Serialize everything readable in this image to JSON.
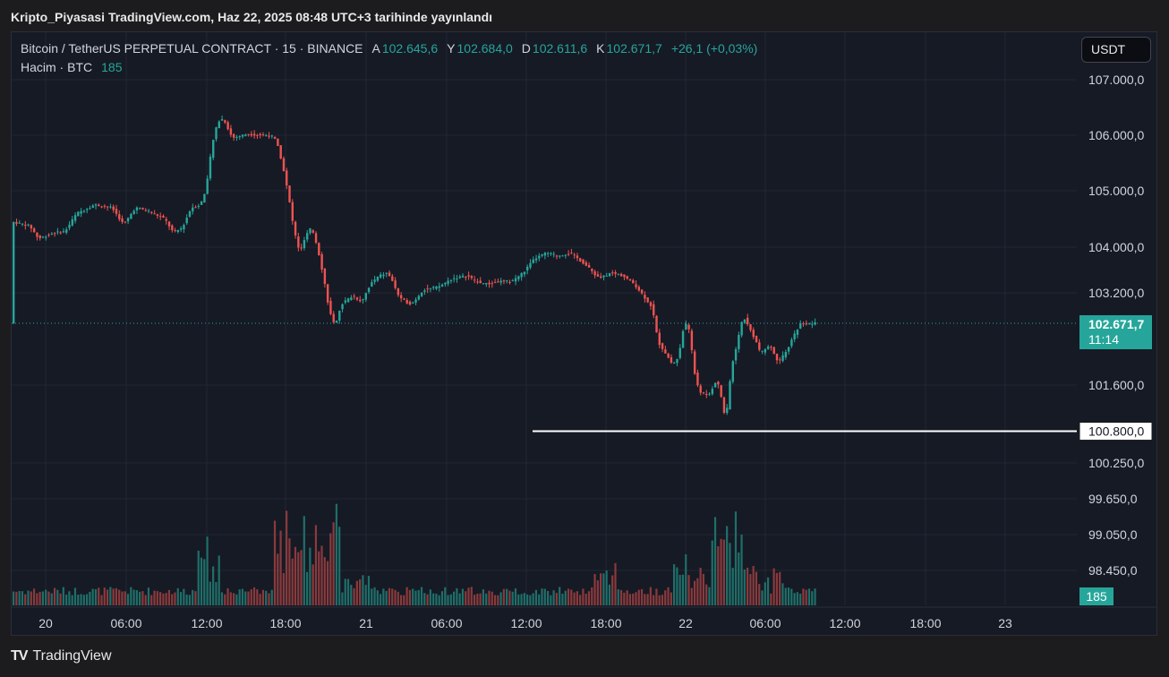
{
  "caption": "Kripto_Piyasasi TradingView.com, Haz 22, 2025 08:48 UTC+3 tarihinde yayınlandı",
  "legend": {
    "symbol": "Bitcoin / TetherUS PERPETUAL CONTRACT · 15 · BINANCE",
    "open_label": "A",
    "open": "102.645,6",
    "high_label": "Y",
    "high": "102.684,0",
    "low_label": "D",
    "low": "102.611,6",
    "close_label": "K",
    "close": "102.671,7",
    "change": "+26,1 (+0,03%)",
    "volume_label": "Hacim · BTC",
    "volume_value": "185"
  },
  "currency": "USDT",
  "price_badge": {
    "price": "102.671,7",
    "countdown": "11:14"
  },
  "support_badge": "100.800,0",
  "volume_badge": "185",
  "footer": {
    "logo": "TV",
    "brand": "TradingView"
  },
  "colors": {
    "up": "#26a69a",
    "down": "#ef5350",
    "background": "#161a25",
    "grid": "#232733",
    "support": "#ffffff"
  },
  "chart_data": {
    "type": "candlestick",
    "interval_minutes": 15,
    "price_axis": {
      "scale": "non-linear (log-like compressed)",
      "ticks": [
        {
          "v": 107000,
          "label": "107.000,0"
        },
        {
          "v": 106000,
          "label": "106.000,0"
        },
        {
          "v": 105000,
          "label": "105.000,0"
        },
        {
          "v": 104000,
          "label": "104.000,0"
        },
        {
          "v": 103200,
          "label": "103.200,0"
        },
        {
          "v": 101600,
          "label": "101.600,0"
        },
        {
          "v": 100250,
          "label": "100.250,0"
        },
        {
          "v": 99650,
          "label": "99.650,0"
        },
        {
          "v": 99050,
          "label": "99.050,0"
        },
        {
          "v": 98450,
          "label": "98.450,0"
        }
      ]
    },
    "time_axis": [
      "20",
      "06:00",
      "12:00",
      "18:00",
      "21",
      "06:00",
      "12:00",
      "18:00",
      "22",
      "06:00",
      "12:00",
      "18:00",
      "23"
    ],
    "support_line": 100800,
    "last_price": 102671.7,
    "trend_points": [
      [
        0,
        104450
      ],
      [
        6,
        104380
      ],
      [
        9,
        104150
      ],
      [
        14,
        104250
      ],
      [
        18,
        104280
      ],
      [
        22,
        104600
      ],
      [
        28,
        104750
      ],
      [
        34,
        104700
      ],
      [
        38,
        104400
      ],
      [
        42,
        104700
      ],
      [
        46,
        104650
      ],
      [
        52,
        104500
      ],
      [
        55,
        104250
      ],
      [
        58,
        104350
      ],
      [
        61,
        104700
      ],
      [
        64,
        104750
      ],
      [
        66,
        105000
      ],
      [
        68,
        105800
      ],
      [
        70,
        106250
      ],
      [
        72,
        106300
      ],
      [
        75,
        105950
      ],
      [
        80,
        106020
      ],
      [
        85,
        106000
      ],
      [
        88,
        106000
      ],
      [
        90,
        105900
      ],
      [
        92,
        105500
      ],
      [
        94,
        104950
      ],
      [
        96,
        104300
      ],
      [
        98,
        103900
      ],
      [
        100,
        104200
      ],
      [
        102,
        104350
      ],
      [
        104,
        104000
      ],
      [
        106,
        103500
      ],
      [
        108,
        102900
      ],
      [
        110,
        102600
      ],
      [
        112,
        103000
      ],
      [
        116,
        103150
      ],
      [
        119,
        103050
      ],
      [
        122,
        103350
      ],
      [
        125,
        103500
      ],
      [
        128,
        103550
      ],
      [
        130,
        103350
      ],
      [
        132,
        103100
      ],
      [
        136,
        103000
      ],
      [
        140,
        103250
      ],
      [
        145,
        103300
      ],
      [
        150,
        103450
      ],
      [
        155,
        103500
      ],
      [
        158,
        103400
      ],
      [
        162,
        103350
      ],
      [
        166,
        103400
      ],
      [
        170,
        103400
      ],
      [
        174,
        103550
      ],
      [
        178,
        103800
      ],
      [
        182,
        103900
      ],
      [
        186,
        103850
      ],
      [
        190,
        103900
      ],
      [
        194,
        103750
      ],
      [
        197,
        103600
      ],
      [
        200,
        103450
      ],
      [
        204,
        103550
      ],
      [
        208,
        103500
      ],
      [
        212,
        103350
      ],
      [
        215,
        103150
      ],
      [
        218,
        102950
      ],
      [
        220,
        102350
      ],
      [
        222,
        102200
      ],
      [
        225,
        101950
      ],
      [
        227,
        102100
      ],
      [
        229,
        102700
      ],
      [
        231,
        102500
      ],
      [
        232,
        101900
      ],
      [
        234,
        101500
      ],
      [
        237,
        101400
      ],
      [
        240,
        101700
      ],
      [
        242,
        101300
      ],
      [
        243,
        100950
      ],
      [
        245,
        101900
      ],
      [
        247,
        102350
      ],
      [
        249,
        102800
      ],
      [
        251,
        102600
      ],
      [
        253,
        102400
      ],
      [
        255,
        102150
      ],
      [
        258,
        102300
      ],
      [
        261,
        102000
      ],
      [
        264,
        102200
      ],
      [
        266,
        102450
      ],
      [
        269,
        102700
      ],
      [
        271,
        102650
      ],
      [
        273,
        102672
      ]
    ],
    "volume_pattern": [
      {
        "from": 63,
        "to": 70,
        "level": 0.45
      },
      {
        "from": 89,
        "to": 111,
        "level": 0.6
      },
      {
        "from": 112,
        "to": 122,
        "level": 0.2
      },
      {
        "from": 198,
        "to": 205,
        "level": 0.25
      },
      {
        "from": 225,
        "to": 237,
        "level": 0.3
      },
      {
        "from": 238,
        "to": 252,
        "level": 0.55
      },
      {
        "from": 253,
        "to": 262,
        "level": 0.22
      }
    ]
  }
}
